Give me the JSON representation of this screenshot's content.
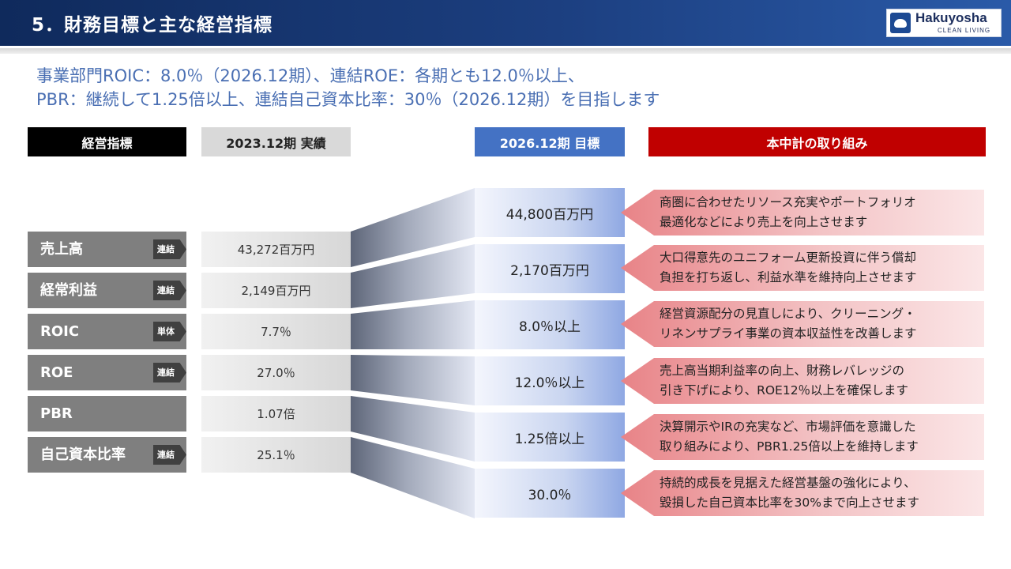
{
  "header": {
    "title": "5．財務目標と主な経営指標",
    "logo_name": "Hakuyosha",
    "logo_sub": "CLEAN LIVING"
  },
  "subtitle": {
    "line1": "事業部門ROIC：8.0％（2026.12期）、連結ROE：各期とも12.0％以上、",
    "line2": "PBR：継続して1.25倍以上、連結自己資本比率：30％（2026.12期）を目指します"
  },
  "columns": {
    "kpi": "経営指標",
    "actual": "2023.12期 実績",
    "target": "2026.12期 目標",
    "initiatives": "本中計の取り組み"
  },
  "rows": [
    {
      "label": "売上高",
      "tag": "連結",
      "actual": "43,272百万円",
      "target": "44,800百万円",
      "initiative_1": "商圏に合わせたリソース充実やポートフォリオ",
      "initiative_2": "最適化などにより売上を向上させます"
    },
    {
      "label": "経常利益",
      "tag": "連結",
      "actual": "2,149百万円",
      "target": "2,170百万円",
      "initiative_1": "大口得意先のユニフォーム更新投資に伴う償却",
      "initiative_2": "負担を打ち返し、利益水準を維持向上させます"
    },
    {
      "label": "ROIC",
      "tag": "単体",
      "actual": "7.7％",
      "target": "8.0％以上",
      "initiative_1": "経営資源配分の見直しにより、クリーニング・",
      "initiative_2": "リネンサプライ事業の資本収益性を改善します"
    },
    {
      "label": "ROE",
      "tag": "連結",
      "actual": "27.0％",
      "target": "12.0％以上",
      "initiative_1": "売上高当期利益率の向上、財務レバレッジの",
      "initiative_2": "引き下げにより、ROE12％以上を確保します"
    },
    {
      "label": "PBR",
      "tag": "",
      "actual": "1.07倍",
      "target": "1.25倍以上",
      "initiative_1": "決算開示やIRの充実など、市場評価を意識した",
      "initiative_2": "取り組みにより、PBR1.25倍以上を維持します"
    },
    {
      "label": "自己資本比率",
      "tag": "連結",
      "actual": "25.1％",
      "target": "30.0％",
      "initiative_1": "持続的成長を見据えた経営基盤の強化により、",
      "initiative_2": "毀損した自己資本比率を30%まで向上させます"
    }
  ]
}
